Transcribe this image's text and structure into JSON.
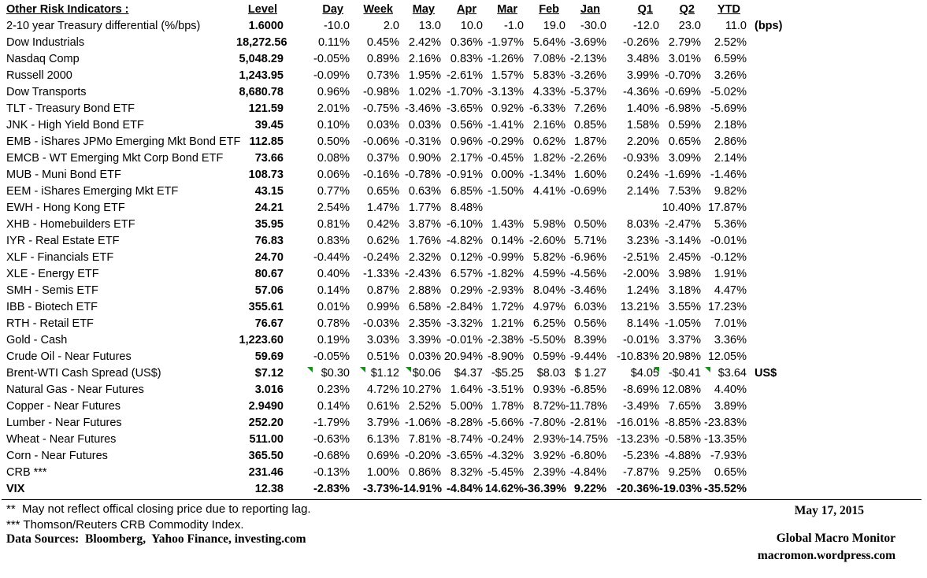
{
  "colors": {
    "flag_green": "#1f8a1f",
    "text": "#000000",
    "background": "#ffffff"
  },
  "table": {
    "title": "Other Risk Indicators :",
    "columns": [
      "Level",
      "Day",
      "Week",
      "May",
      "Apr",
      "Mar",
      "Feb",
      "Jan",
      "Q1",
      "Q2",
      "YTD"
    ],
    "rows": [
      {
        "label": "2-10 year Treasury differential (%/bps)",
        "values": [
          "1.6000",
          "-10.0",
          "2.0",
          "13.0",
          "10.0",
          "-1.0",
          "19.0",
          "-30.0",
          "-12.0",
          "23.0",
          "11.0"
        ],
        "note": "(bps)"
      },
      {
        "label": "Dow Industrials",
        "values": [
          "18,272.56",
          "0.11%",
          "0.45%",
          "2.42%",
          "0.36%",
          "-1.97%",
          "5.64%",
          "-3.69%",
          "-0.26%",
          "2.79%",
          "2.52%"
        ],
        "note": ""
      },
      {
        "label": "Nasdaq Comp",
        "values": [
          "5,048.29",
          "-0.05%",
          "0.89%",
          "2.16%",
          "0.83%",
          "-1.26%",
          "7.08%",
          "-2.13%",
          "3.48%",
          "3.01%",
          "6.59%"
        ],
        "note": ""
      },
      {
        "label": "Russell 2000",
        "values": [
          "1,243.95",
          "-0.09%",
          "0.73%",
          "1.95%",
          "-2.61%",
          "1.57%",
          "5.83%",
          "-3.26%",
          "3.99%",
          "-0.70%",
          "3.26%"
        ],
        "note": ""
      },
      {
        "label": "Dow Transports",
        "values": [
          "8,680.78",
          "0.96%",
          "-0.98%",
          "1.02%",
          "-1.70%",
          "-3.13%",
          "4.33%",
          "-5.37%",
          "-4.36%",
          "-0.69%",
          "-5.02%"
        ],
        "note": ""
      },
      {
        "label": "TLT - Treasury Bond ETF",
        "values": [
          "121.59",
          "2.01%",
          "-0.75%",
          "-3.46%",
          "-3.65%",
          "0.92%",
          "-6.33%",
          "7.26%",
          "1.40%",
          "-6.98%",
          "-5.69%"
        ],
        "note": ""
      },
      {
        "label": "JNK - High Yield Bond ETF",
        "values": [
          "39.45",
          "0.10%",
          "0.03%",
          "0.03%",
          "0.56%",
          "-1.41%",
          "2.16%",
          "0.85%",
          "1.58%",
          "0.59%",
          "2.18%"
        ],
        "note": ""
      },
      {
        "label": "EMB - iShares JPMo Emerging Mkt Bond ETF",
        "values": [
          "112.85",
          "0.50%",
          "-0.06%",
          "-0.31%",
          "0.96%",
          "-0.29%",
          "0.62%",
          "1.87%",
          "2.20%",
          "0.65%",
          "2.86%"
        ],
        "note": ""
      },
      {
        "label": "EMCB - WT Emerging Mkt Corp Bond ETF",
        "values": [
          "73.66",
          "0.08%",
          "0.37%",
          "0.90%",
          "2.17%",
          "-0.45%",
          "1.82%",
          "-2.26%",
          "-0.93%",
          "3.09%",
          "2.14%"
        ],
        "note": ""
      },
      {
        "label": "MUB - Muni Bond ETF",
        "values": [
          "108.73",
          "0.06%",
          "-0.16%",
          "-0.78%",
          "-0.91%",
          "0.00%",
          "-1.34%",
          "1.60%",
          "0.24%",
          "-1.69%",
          "-1.46%"
        ],
        "note": ""
      },
      {
        "label": "EEM - iShares Emerging Mkt ETF",
        "values": [
          "43.15",
          "0.77%",
          "0.65%",
          "0.63%",
          "6.85%",
          "-1.50%",
          "4.41%",
          "-0.69%",
          "2.14%",
          "7.53%",
          "9.82%"
        ],
        "note": ""
      },
      {
        "label": "EWH - Hong Kong ETF",
        "values": [
          "24.21",
          "2.54%",
          "1.47%",
          "1.77%",
          "8.48%",
          "",
          "",
          "",
          "",
          "10.40%",
          "17.87%"
        ],
        "note": ""
      },
      {
        "label": "XHB - Homebuilders ETF",
        "values": [
          "35.95",
          "0.81%",
          "0.42%",
          "3.87%",
          "-6.10%",
          "1.43%",
          "5.98%",
          "0.50%",
          "8.03%",
          "-2.47%",
          "5.36%"
        ],
        "note": ""
      },
      {
        "label": "IYR - Real Estate ETF",
        "values": [
          "76.83",
          "0.83%",
          "0.62%",
          "1.76%",
          "-4.82%",
          "0.14%",
          "-2.60%",
          "5.71%",
          "3.23%",
          "-3.14%",
          "-0.01%"
        ],
        "note": ""
      },
      {
        "label": "XLF - Financials ETF",
        "values": [
          "24.70",
          "-0.44%",
          "-0.24%",
          "2.32%",
          "0.12%",
          "-0.99%",
          "5.82%",
          "-6.96%",
          "-2.51%",
          "2.45%",
          "-0.12%"
        ],
        "note": ""
      },
      {
        "label": "XLE - Energy ETF",
        "values": [
          "80.67",
          "0.40%",
          "-1.33%",
          "-2.43%",
          "6.57%",
          "-1.82%",
          "4.59%",
          "-4.56%",
          "-2.00%",
          "3.98%",
          "1.91%"
        ],
        "note": ""
      },
      {
        "label": "SMH - Semis ETF",
        "values": [
          "57.06",
          "0.14%",
          "0.87%",
          "2.88%",
          "0.29%",
          "-2.93%",
          "8.04%",
          "-3.46%",
          "1.24%",
          "3.18%",
          "4.47%"
        ],
        "note": ""
      },
      {
        "label": "IBB - Biotech ETF",
        "values": [
          "355.61",
          "0.01%",
          "0.99%",
          "6.58%",
          "-2.84%",
          "1.72%",
          "4.97%",
          "6.03%",
          "13.21%",
          "3.55%",
          "17.23%"
        ],
        "note": ""
      },
      {
        "label": "RTH - Retail ETF",
        "values": [
          "76.67",
          "0.78%",
          "-0.03%",
          "2.35%",
          "-3.32%",
          "1.21%",
          "6.25%",
          "0.56%",
          "8.14%",
          "-1.05%",
          "7.01%"
        ],
        "note": ""
      },
      {
        "label": "Gold - Cash",
        "values": [
          "1,223.60",
          "0.19%",
          "3.03%",
          "3.39%",
          "-0.01%",
          "-2.38%",
          "-5.50%",
          "8.39%",
          "-0.01%",
          "3.37%",
          "3.36%"
        ],
        "note": ""
      },
      {
        "label": "Crude Oil - Near Futures",
        "values": [
          "59.69",
          "-0.05%",
          "0.51%",
          "0.03%",
          "20.94%",
          "-8.90%",
          "0.59%",
          "-9.44%",
          "-10.83%",
          "20.98%",
          "12.05%"
        ],
        "note": ""
      },
      {
        "label": "Brent-WTI Cash Spread (US$)",
        "values": [
          "$7.12",
          "$0.30",
          "$1.12",
          "$0.06",
          "$4.37",
          "-$5.25",
          "$8.03",
          "$ 1.27",
          "$4.05",
          "-$0.41",
          "$3.64"
        ],
        "note": "US$",
        "flags": [
          1,
          2,
          3,
          9,
          10
        ]
      },
      {
        "label": "Natural Gas - Near Futures",
        "values": [
          "3.016",
          "0.23%",
          "4.72%",
          "10.27%",
          "1.64%",
          "-3.51%",
          "0.93%",
          "-6.85%",
          "-8.69%",
          "12.08%",
          "4.40%"
        ],
        "note": ""
      },
      {
        "label": "Copper - Near Futures",
        "values": [
          "2.9490",
          "0.14%",
          "0.61%",
          "2.52%",
          "5.00%",
          "1.78%",
          "8.72%",
          "-11.78%",
          "-3.49%",
          "7.65%",
          "3.89%"
        ],
        "note": ""
      },
      {
        "label": "Lumber - Near Futures",
        "values": [
          "252.20",
          "-1.79%",
          "3.79%",
          "-1.06%",
          "-8.28%",
          "-5.66%",
          "-7.80%",
          "-2.81%",
          "-16.01%",
          "-8.85%",
          "-23.83%"
        ],
        "note": ""
      },
      {
        "label": "Wheat - Near Futures",
        "values": [
          "511.00",
          "-0.63%",
          "6.13%",
          "7.81%",
          "-8.74%",
          "-0.24%",
          "2.93%",
          "-14.75%",
          "-13.23%",
          "-0.58%",
          "-13.35%"
        ],
        "note": ""
      },
      {
        "label": "Corn - Near Futures",
        "values": [
          "365.50",
          "-0.68%",
          "0.69%",
          "-0.20%",
          "-3.65%",
          "-4.32%",
          "3.92%",
          "-6.80%",
          "-5.23%",
          "-4.88%",
          "-7.93%"
        ],
        "note": ""
      },
      {
        "label": "CRB ***",
        "values": [
          "231.46",
          "-0.13%",
          "1.00%",
          "0.86%",
          "8.32%",
          "-5.45%",
          "2.39%",
          "-4.84%",
          "-7.87%",
          "9.25%",
          "0.65%"
        ],
        "note": ""
      },
      {
        "label": "VIX",
        "values": [
          "12.38",
          "-2.83%",
          "-3.73%",
          "-14.91%",
          "-4.84%",
          "14.62%",
          "-36.39%",
          "9.22%",
          "-20.36%",
          "-19.03%",
          "-35.52%"
        ],
        "note": "",
        "bold": true
      }
    ]
  },
  "footer": {
    "footnote_2": "**  May not reflect offical closing price due to reporting lag.",
    "footnote_3": "*** Thomson/Reuters CRB Commodity Index.",
    "data_sources": "Data Sources:  Bloomberg,  Yahoo Finance, investing.com",
    "date": "May 17, 2015",
    "brand": "Global Macro Monitor",
    "url": "macromon.wordpress.com"
  }
}
